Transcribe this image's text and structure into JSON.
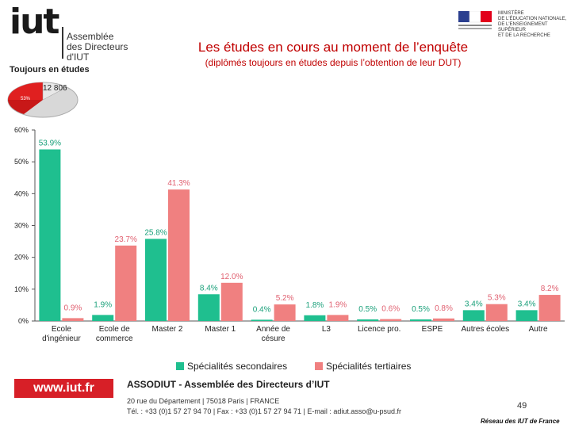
{
  "header": {
    "logo_text": "iut",
    "logo_subtitle_line1": "Assemblée",
    "logo_subtitle_line2": "des Directeurs",
    "logo_subtitle_line3": "d'IUT",
    "logo_tagline": "Toujours en études",
    "ministry_line1": "MINISTÈRE",
    "ministry_line2": "DE L'ÉDUCATION NATIONALE,",
    "ministry_line3": "DE L'ENSEIGNEMENT SUPÉRIEUR",
    "ministry_line4": "ET DE LA RECHERCHE",
    "title": "Les études en cours au moment de l’enquête",
    "subtitle": "(diplômés toujours en études depuis l’obtention de leur DUT)"
  },
  "pie_inset": {
    "total": "12 806",
    "pct": "53%"
  },
  "colors": {
    "secondary": "#1fbf8f",
    "tertiary": "#f08080",
    "secondary_text": "#1aa07a",
    "tertiary_text": "#e06070",
    "brand_red": "#d71f27",
    "title_red": "#c00000"
  },
  "chart_data": {
    "type": "bar",
    "categories": [
      "Ecole d'ingénieur",
      "Ecole de commerce",
      "Master 2",
      "Master 1",
      "Année de césure",
      "L3",
      "Licence pro.",
      "ESPE",
      "Autres écoles",
      "Autre"
    ],
    "category_lines": [
      [
        "Ecole",
        "d'ingénieur"
      ],
      [
        "Ecole de",
        "commerce"
      ],
      [
        "Master 2"
      ],
      [
        "Master 1"
      ],
      [
        "Année de",
        "césure"
      ],
      [
        "L3"
      ],
      [
        "Licence pro."
      ],
      [
        "ESPE"
      ],
      [
        "Autres écoles"
      ],
      [
        "Autre"
      ]
    ],
    "series": [
      {
        "name": "Spécialités secondaires",
        "values": [
          53.9,
          1.9,
          25.8,
          8.4,
          0.4,
          1.8,
          0.5,
          0.5,
          3.4,
          3.4
        ],
        "labels": [
          "53.9%",
          "1.9%",
          "25.8%",
          "8.4%",
          "0.4%",
          "1.8%",
          "0.5%",
          "0.5%",
          "3.4%",
          "3.4%"
        ]
      },
      {
        "name": "Spécialités tertiaires",
        "values": [
          0.9,
          23.7,
          41.3,
          12.0,
          5.2,
          1.9,
          0.6,
          0.8,
          5.3,
          8.2
        ],
        "labels": [
          "0.9%",
          "23.7%",
          "41.3%",
          "12.0%",
          "5.2%",
          "1.9%",
          "0.6%",
          "0.8%",
          "5.3%",
          "8.2%"
        ]
      }
    ],
    "yticks": [
      0,
      10,
      20,
      30,
      40,
      50,
      60
    ],
    "ytick_labels": [
      "0%",
      "10%",
      "20%",
      "30%",
      "40%",
      "50%",
      "60%"
    ],
    "ylim": [
      0,
      60
    ],
    "legend_position": "bottom"
  },
  "footer": {
    "url": "www.iut.fr",
    "org": "ASSODIUT - Assemblée des Directeurs d’IUT",
    "address_line1": "20 rue du Département | 75018 Paris | FRANCE",
    "address_line2": "Tél. : +33 (0)1 57 27 94 70 | Fax : +33 (0)1 57 27 94 71 | E-mail : adiut.asso@u-psud.fr",
    "page_number": "49",
    "signature": "Réseau des IUT de France"
  }
}
